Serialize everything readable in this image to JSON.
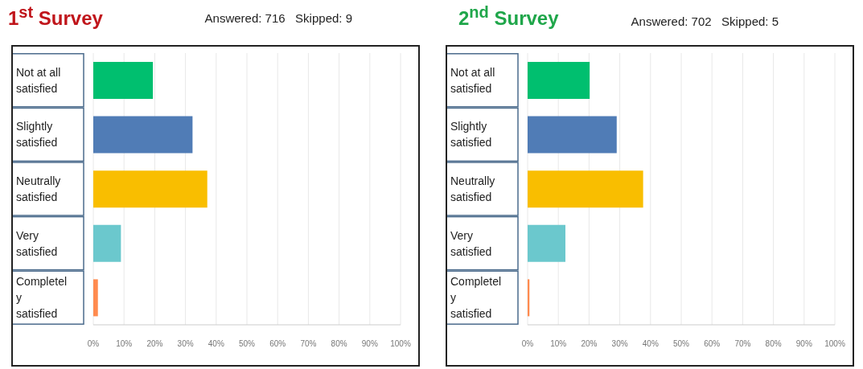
{
  "chart_data": [
    {
      "type": "bar",
      "orientation": "horizontal",
      "title": "1$^{st}$ Survey",
      "subtitle": "Answered: 716   Skipped: 9",
      "categories": [
        "Not at all satisfied",
        "Slightly satisfied",
        "Neutrally satisfied",
        "Very satisfied",
        "Completely satisfied"
      ],
      "values": [
        19.4,
        32.3,
        37.1,
        9.0,
        1.5
      ],
      "colors": [
        "#00bf6f",
        "#507cb6",
        "#f9be00",
        "#6bc8cd",
        "#ff8b4f"
      ],
      "xlim": [
        0,
        100
      ],
      "xticks": [
        {
          "value": 0,
          "label": "0%"
        },
        {
          "value": 10,
          "label": "10%"
        },
        {
          "value": 20,
          "label": "20%"
        },
        {
          "value": 30,
          "label": "30%"
        },
        {
          "value": 40,
          "label": "40%"
        },
        {
          "value": 50,
          "label": "50%"
        },
        {
          "value": 60,
          "label": "60%"
        },
        {
          "value": 70,
          "label": "70%"
        },
        {
          "value": 80,
          "label": "80%"
        },
        {
          "value": 90,
          "label": "90%"
        },
        {
          "value": 100,
          "label": "100%"
        }
      ],
      "grid": "x"
    },
    {
      "type": "bar",
      "orientation": "horizontal",
      "title": "2$^{nd}$ Survey",
      "subtitle": "Answered: 702   Skipped: 5",
      "categories": [
        "Not at all satisfied",
        "Slightly satisfied",
        "Neutrally satisfied",
        "Very satisfied",
        "Completely satisfied"
      ],
      "values": [
        20.2,
        29.0,
        37.6,
        12.3,
        0.6
      ],
      "colors": [
        "#00bf6f",
        "#507cb6",
        "#f9be00",
        "#6bc8cd",
        "#ff8b4f"
      ],
      "xlim": [
        0,
        100
      ],
      "xticks": [
        {
          "value": 0,
          "label": "0%"
        },
        {
          "value": 10,
          "label": "10%"
        },
        {
          "value": 20,
          "label": "20%"
        },
        {
          "value": 30,
          "label": "30%"
        },
        {
          "value": 40,
          "label": "40%"
        },
        {
          "value": 50,
          "label": "50%"
        },
        {
          "value": 60,
          "label": "60%"
        },
        {
          "value": 70,
          "label": "70%"
        },
        {
          "value": 80,
          "label": "80%"
        },
        {
          "value": 90,
          "label": "90%"
        },
        {
          "value": 100,
          "label": "100%"
        }
      ],
      "grid": "x"
    }
  ]
}
